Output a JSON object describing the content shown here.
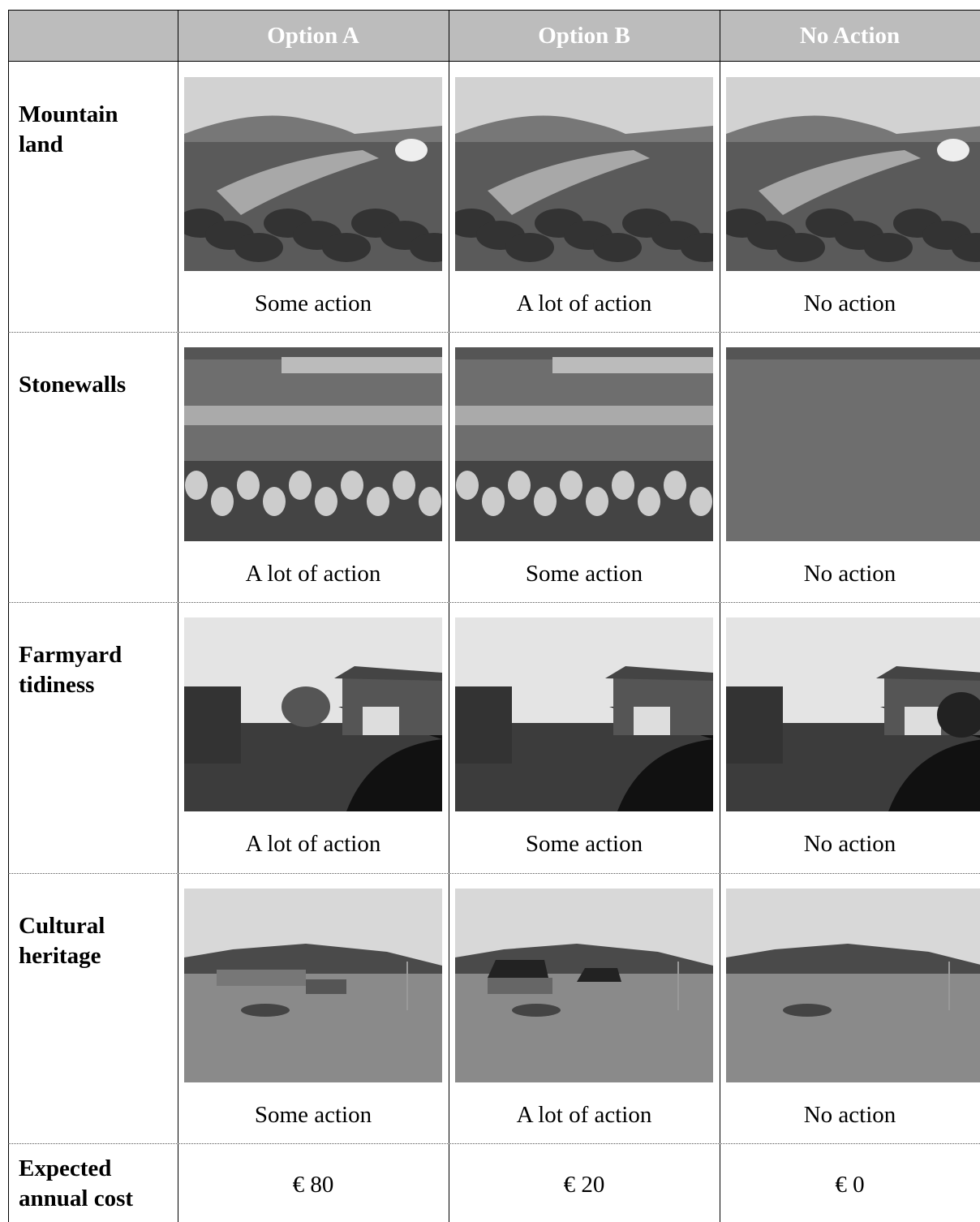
{
  "table": {
    "columns": [
      "Option A",
      "Option B",
      "No Action"
    ],
    "rows": [
      {
        "label": "Mountain land",
        "cells": [
          "Some action",
          "A lot of action",
          "No action"
        ]
      },
      {
        "label": "Stonewalls",
        "cells": [
          "A lot of action",
          "Some action",
          "No action"
        ]
      },
      {
        "label": "Farmyard tidiness",
        "cells": [
          "A lot of action",
          "Some action",
          "No action"
        ]
      },
      {
        "label": "Cultural heritage",
        "cells": [
          "Some action",
          "A lot of action",
          "No action"
        ]
      }
    ],
    "cost_row": {
      "label": "Expected annual cost",
      "cells": [
        "€ 80",
        "€ 20",
        "€ 0"
      ]
    }
  }
}
